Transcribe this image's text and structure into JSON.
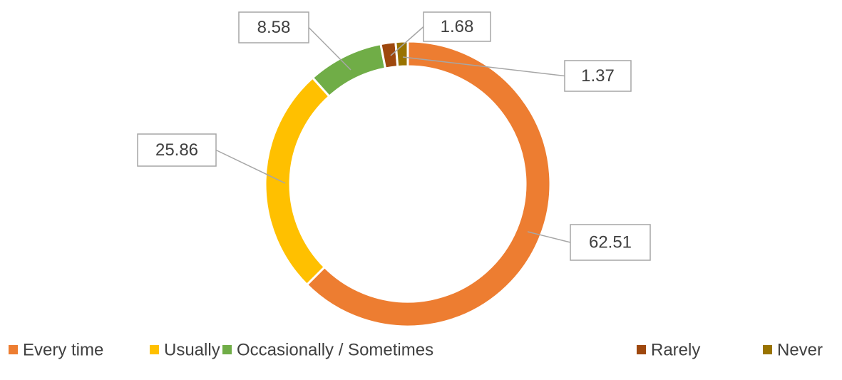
{
  "chart_data": {
    "type": "donut",
    "categories": [
      "Every time",
      "Usually",
      "Occasionally / Sometimes",
      "Rarely",
      "Never"
    ],
    "values": [
      62.51,
      25.86,
      8.58,
      1.68,
      1.37
    ],
    "colors": [
      "#ED7D31",
      "#FFC000",
      "#70AD47",
      "#9E480E",
      "#997300"
    ],
    "legend": "bottom"
  }
}
